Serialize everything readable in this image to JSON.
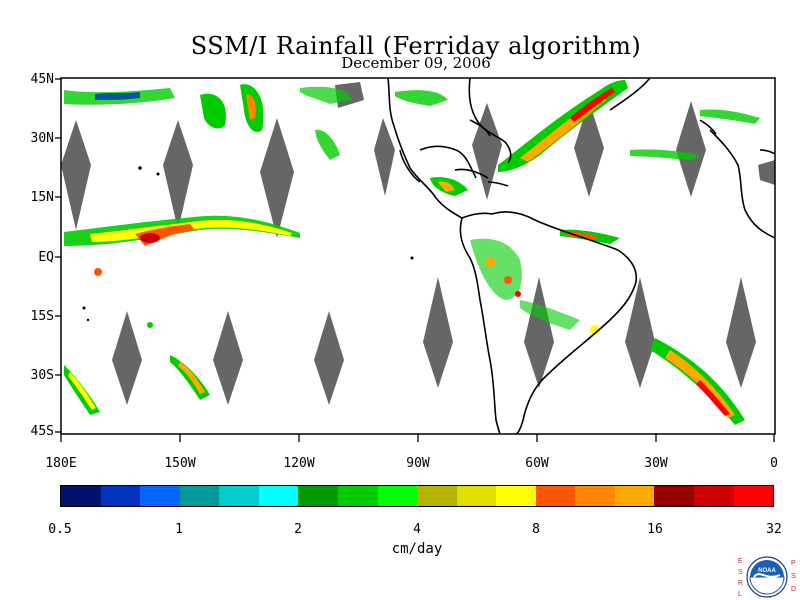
{
  "title": "SSM/I Rainfall (Ferriday algorithm)",
  "subtitle": "December 09, 2006",
  "lat_labels": [
    "45N",
    "30N",
    "15N",
    "EQ",
    "15S",
    "30S",
    "45S"
  ],
  "lon_labels": [
    "180E",
    "150W",
    "120W",
    "90W",
    "60W",
    "30W",
    "0"
  ],
  "colorbar": {
    "colors": [
      "#001170",
      "#0033bb",
      "#0066ff",
      "#00999a",
      "#00cccc",
      "#00ffff",
      "#009900",
      "#00cc00",
      "#00ff00",
      "#b3b300",
      "#e0e000",
      "#ffff00",
      "#ff5500",
      "#ff8800",
      "#ffaa00",
      "#990000",
      "#cc0000",
      "#ff0000"
    ],
    "tick_labels": [
      "0.5",
      "1",
      "2",
      "4",
      "8",
      "16",
      "32"
    ],
    "units": "cm/day"
  },
  "logo": {
    "left_text": "ESRL",
    "right_text": "PSD",
    "center_text": "NOAA",
    "name": "noaa-logo"
  },
  "map": {
    "land_color": "#000000",
    "gap_color": "#666666",
    "background": "#ffffff"
  }
}
